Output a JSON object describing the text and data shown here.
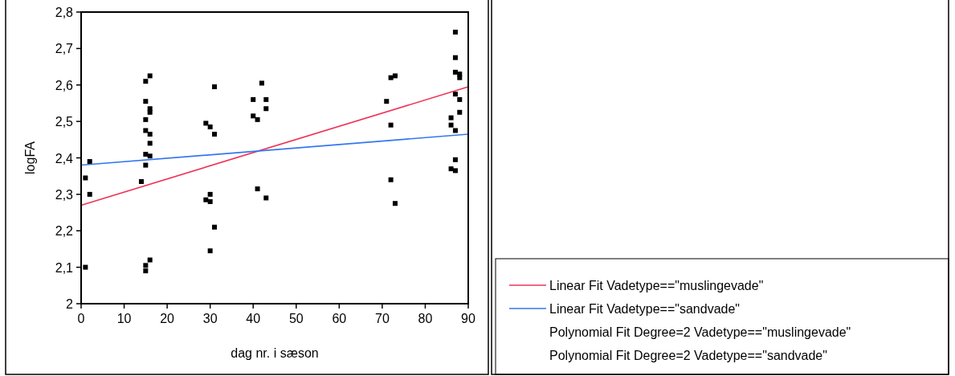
{
  "chart_data": {
    "type": "scatter",
    "xlabel": "dag nr. i sæson",
    "ylabel": "logFA",
    "xlim": [
      0,
      90
    ],
    "xticks": [
      0,
      10,
      20,
      30,
      40,
      50,
      60,
      70,
      80,
      90
    ],
    "ylim": [
      2,
      2.8
    ],
    "yticks": [
      2,
      {
        "value": 2.1,
        "label": "2,1"
      },
      {
        "value": 2.2,
        "label": "2,2"
      },
      {
        "value": 2.3,
        "label": "2,3"
      },
      {
        "value": 2.4,
        "label": "2,4"
      },
      {
        "value": 2.5,
        "label": "2,5"
      },
      {
        "value": 2.6,
        "label": "2,6"
      },
      {
        "value": 2.7,
        "label": "2,7"
      },
      {
        "value": 2.8,
        "label": "2,8"
      }
    ],
    "marker": "square",
    "legend": "bottom right",
    "grid": false,
    "series": [
      {
        "color": "#000000",
        "x": [
          1,
          1,
          2,
          2,
          14,
          15,
          15,
          15,
          15,
          15,
          15,
          15,
          15,
          16,
          16,
          16,
          16,
          16,
          16,
          16,
          29,
          29,
          30,
          30,
          30,
          30,
          31,
          31,
          31,
          40,
          40,
          41,
          41,
          42,
          43,
          43,
          43,
          71,
          72,
          72,
          72,
          73,
          73,
          86,
          86,
          86,
          87,
          87,
          87,
          87,
          87,
          87,
          87,
          88,
          88,
          88,
          88
        ],
        "values": [
          2.345,
          2.1,
          2.39,
          2.3,
          2.335,
          2.61,
          2.555,
          2.505,
          2.475,
          2.41,
          2.38,
          2.105,
          2.09,
          2.625,
          2.535,
          2.525,
          2.465,
          2.44,
          2.405,
          2.12,
          2.495,
          2.285,
          2.485,
          2.3,
          2.28,
          2.145,
          2.595,
          2.465,
          2.21,
          2.56,
          2.515,
          2.505,
          2.315,
          2.605,
          2.56,
          2.535,
          2.29,
          2.555,
          2.62,
          2.49,
          2.34,
          2.625,
          2.275,
          2.51,
          2.49,
          2.37,
          2.745,
          2.675,
          2.635,
          2.575,
          2.475,
          2.395,
          2.365,
          2.63,
          2.62,
          2.56,
          2.525
        ]
      },
      {
        "type": "line",
        "name": "Linear Fit Vadetype==\"muslingevade\"",
        "color": "#ee3355",
        "x": [
          0,
          90
        ],
        "values": [
          2.27,
          2.595
        ],
        "marker": "none"
      },
      {
        "type": "line",
        "name": "Linear Fit Vadetype==\"sandvade\"",
        "color": "#3377ee",
        "x": [
          0,
          90
        ],
        "values": [
          2.38,
          2.465
        ],
        "marker": "none"
      }
    ],
    "annotations": [
      "Polynomial Fit Degree=2 Vadetype==\"muslingevade\"",
      "Polynomial Fit Degree=2 Vadetype==\"sandvade\""
    ]
  }
}
